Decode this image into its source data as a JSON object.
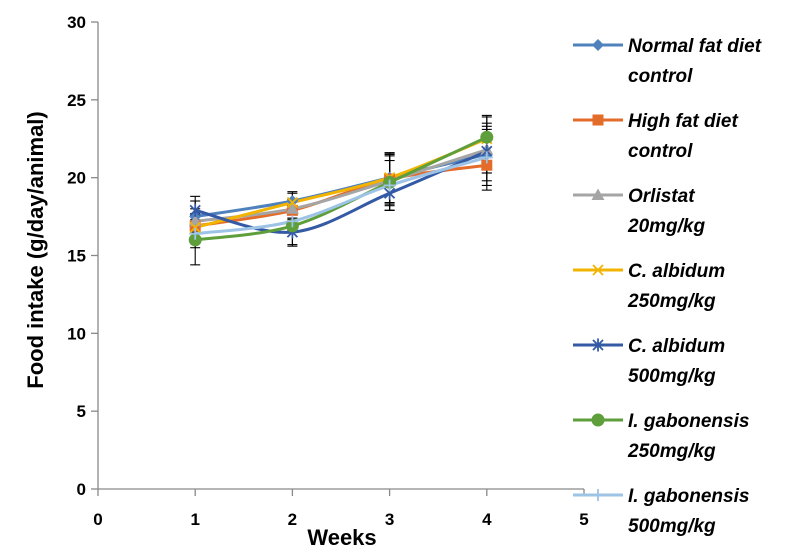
{
  "chart_data": {
    "type": "line",
    "xlabel": "Weeks",
    "ylabel": "Food intake (g/day/animal)",
    "xlim": [
      0,
      5
    ],
    "ylim": [
      0,
      30
    ],
    "xticks": [
      "0",
      "1",
      "2",
      "3",
      "4",
      "5"
    ],
    "yticks": [
      "0",
      "5",
      "10",
      "15",
      "20",
      "25",
      "30"
    ],
    "grid": false,
    "legend_position": "right",
    "x": [
      1,
      2,
      3,
      4
    ],
    "series": [
      {
        "name": "Normal fat diet control",
        "label_lines": [
          "Normal fat diet",
          "control"
        ],
        "color": "#4F81BD",
        "marker": "diamond",
        "values": [
          17.5,
          18.5,
          20.0,
          21.5
        ],
        "errors": [
          1.0,
          0.6,
          1.6,
          2.0
        ]
      },
      {
        "name": "High fat diet control",
        "label_lines": [
          "High fat diet",
          "control"
        ],
        "color": "#E46C2A",
        "marker": "square",
        "values": [
          16.9,
          17.9,
          19.9,
          20.8
        ],
        "errors": [
          0.8,
          0.6,
          1.6,
          1.6
        ]
      },
      {
        "name": "Orlistat 20mg/kg",
        "label_lines": [
          "Orlistat",
          "20mg/kg"
        ],
        "color": "#A5A5A5",
        "marker": "triangle",
        "values": [
          17.2,
          18.0,
          19.8,
          21.8
        ],
        "errors": [
          0.8,
          0.6,
          1.6,
          1.5
        ]
      },
      {
        "name": "C. albidum 250mg/kg",
        "label_lines": [
          "C. albidum",
          "250mg/kg"
        ],
        "color": "#F2B400",
        "marker": "x",
        "values": [
          16.8,
          18.4,
          20.0,
          22.5
        ],
        "errors": [
          0.8,
          0.6,
          1.6,
          1.5
        ]
      },
      {
        "name": "C. albidum 500mg/kg",
        "label_lines": [
          "C. albidum",
          "500mg/kg"
        ],
        "color": "#3459A5",
        "marker": "star",
        "values": [
          17.9,
          16.5,
          19.0,
          21.7
        ],
        "errors": [
          0.9,
          0.9,
          1.1,
          1.4
        ]
      },
      {
        "name": "I. gabonensis 250mg/kg",
        "label_lines": [
          "I. gabonensis",
          "250mg/kg"
        ],
        "color": "#5E9E3B",
        "marker": "circle",
        "values": [
          16.0,
          16.9,
          19.7,
          22.6
        ],
        "errors": [
          1.6,
          1.2,
          1.8,
          1.3
        ]
      },
      {
        "name": "I. gabonensis 500mg/kg",
        "label_lines": [
          "I. gabonensis",
          "500mg/kg"
        ],
        "color": "#9DC3E6",
        "marker": "plus",
        "values": [
          16.4,
          17.2,
          19.5,
          21.3
        ],
        "errors": [
          0.9,
          0.6,
          1.6,
          1.5
        ]
      }
    ]
  }
}
